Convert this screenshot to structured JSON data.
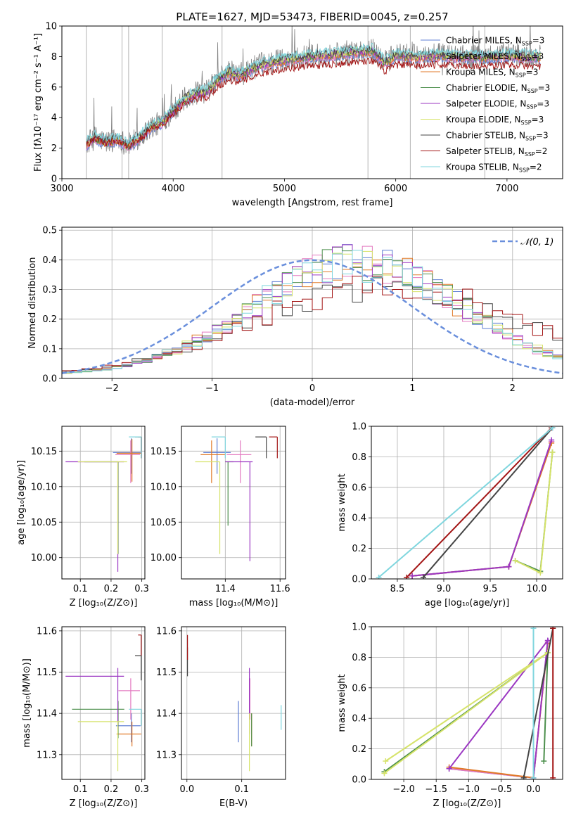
{
  "figure": {
    "title": "PLATE=1627, MJD=53473, FIBERID=0045, z=0.257"
  },
  "colors": {
    "Chabrier MILES": "#5f7fd4",
    "Salpeter MILES": "#e37ac0",
    "Kroupa MILES": "#e07a28",
    "Chabrier ELODIE": "#4c8f4c",
    "Salpeter ELODIE": "#9b37c2",
    "Kroupa ELODIE": "#d6e36a",
    "Chabrier STELIB": "#444444",
    "Salpeter STELIB": "#a31515",
    "Kroupa STELIB": "#7fd6de",
    "gauss": "#6a8fdc",
    "gray_data": "#808080"
  },
  "chart_data": [
    {
      "id": "spectrum",
      "type": "line",
      "xlabel": "wavelength [Angstrom, rest frame]",
      "ylabel": "Flux [fλ10⁻¹⁷ erg cm⁻² s⁻¹ A⁻¹]",
      "xlim": [
        3000,
        7500
      ],
      "ylim": [
        0,
        10
      ],
      "xticks": [
        3000,
        4000,
        5000,
        6000,
        7000
      ],
      "yticks": [
        0,
        2,
        4,
        6,
        8,
        10
      ],
      "legend_position": "upper-right",
      "legend": [
        {
          "model": "Chabrier MILES",
          "nssp": "3"
        },
        {
          "model": "Salpeter MILES",
          "nssp": "3"
        },
        {
          "model": "Kroupa MILES",
          "nssp": "3"
        },
        {
          "model": "Chabrier ELODIE",
          "nssp": "3"
        },
        {
          "model": "Salpeter ELODIE",
          "nssp": "3"
        },
        {
          "model": "Kroupa ELODIE",
          "nssp": "3"
        },
        {
          "model": "Chabrier STELIB",
          "nssp": "3"
        },
        {
          "model": "Salpeter STELIB",
          "nssp": "2"
        },
        {
          "model": "Kroupa STELIB",
          "nssp": "2"
        }
      ],
      "continuum": {
        "x": [
          3220,
          3300,
          3400,
          3500,
          3600,
          3700,
          3800,
          3900,
          4000,
          4100,
          4200,
          4300,
          4400,
          4500,
          4600,
          4700,
          4800,
          5000,
          5200,
          5400,
          5600,
          5800,
          5900,
          6000,
          6200,
          6400,
          6600,
          6800,
          7000,
          7200,
          7300
        ],
        "y": [
          2.3,
          2.7,
          2.4,
          2.6,
          2.2,
          2.7,
          3.4,
          3.7,
          4.5,
          5.2,
          5.6,
          5.7,
          6.5,
          7.0,
          6.8,
          7.2,
          7.5,
          7.8,
          8.0,
          8.1,
          8.3,
          8.4,
          7.6,
          8.1,
          8.0,
          8.1,
          8.0,
          8.0,
          8.1,
          8.0,
          8.0
        ]
      }
    },
    {
      "id": "residuals",
      "type": "histogram",
      "xlabel": "(data-model)/error",
      "ylabel": "Normed distribution",
      "xlim": [
        -2.5,
        2.5
      ],
      "ylim": [
        0,
        0.51
      ],
      "xticks": [
        -2,
        -1,
        0,
        1,
        2
      ],
      "yticks": [
        0.0,
        0.1,
        0.2,
        0.3,
        0.4,
        0.5
      ],
      "legend_position": "upper-right",
      "gauss_label": "𝒩(0, 1)",
      "bin_width": 0.1,
      "reference": {
        "name": "Normal",
        "mu": 0,
        "sigma": 1
      }
    },
    {
      "id": "Z-age",
      "type": "errorbar",
      "xlabel": "Z [log₁₀(Z/Z⊙)]",
      "ylabel": "age  [log₁₀(age/yr)]",
      "xlim": [
        0.04,
        0.31
      ],
      "ylim": [
        9.97,
        10.185
      ],
      "xticks": [
        0.1,
        0.2,
        0.3
      ],
      "yticks": [
        10.0,
        10.05,
        10.1,
        10.15
      ],
      "points": [
        {
          "model": "Chabrier MILES",
          "x": 0.266,
          "xerr": [
            0.06,
            0.03
          ],
          "y": 10.148,
          "yerr": [
            0.03,
            0.02
          ]
        },
        {
          "model": "Salpeter MILES",
          "x": 0.264,
          "xerr": [
            0.05,
            0.03
          ],
          "y": 10.145,
          "yerr": [
            0.04,
            0.02
          ]
        },
        {
          "model": "Kroupa MILES",
          "x": 0.268,
          "xerr": [
            0.05,
            0.03
          ],
          "y": 10.147,
          "yerr": [
            0.04,
            0.02
          ]
        },
        {
          "model": "Chabrier ELODIE",
          "x": 0.223,
          "xerr": [
            0.11,
            0.0
          ],
          "y": 10.135,
          "yerr": [
            0.13,
            0.0
          ]
        },
        {
          "model": "Salpeter ELODIE",
          "x": 0.222,
          "xerr": [
            0.17,
            0.02
          ],
          "y": 10.135,
          "yerr": [
            0.155,
            0.0
          ]
        },
        {
          "model": "Kroupa ELODIE",
          "x": 0.222,
          "xerr": [
            0.13,
            0.03
          ],
          "y": 10.135,
          "yerr": [
            0.13,
            0.0
          ]
        },
        {
          "model": "Chabrier STELIB",
          "x": 0.298,
          "xerr": [
            0.02,
            0.0
          ],
          "y": 10.17,
          "yerr": [
            0.02,
            0.0
          ]
        },
        {
          "model": "Salpeter STELIB",
          "x": 0.298,
          "xerr": [
            0.01,
            0.0
          ],
          "y": 10.17,
          "yerr": [
            0.03,
            0.0
          ]
        },
        {
          "model": "Kroupa STELIB",
          "x": 0.298,
          "xerr": [
            0.04,
            0.0
          ],
          "y": 10.17,
          "yerr": [
            0.03,
            0.0
          ]
        }
      ]
    },
    {
      "id": "mass-age",
      "type": "errorbar",
      "xlabel": "mass [log₁₀(M/M⊙)]",
      "ylabel": "",
      "xlim": [
        11.24,
        11.62
      ],
      "ylim": [
        9.97,
        10.185
      ],
      "xticks": [
        11.4,
        11.6
      ],
      "yticks": [
        10.0,
        10.05,
        10.1,
        10.15
      ],
      "points": [
        {
          "model": "Chabrier MILES",
          "x": 11.37,
          "xerr": [
            0.05,
            0.05
          ],
          "y": 10.148,
          "yerr": [
            0.03,
            0.02
          ]
        },
        {
          "model": "Salpeter MILES",
          "x": 11.455,
          "xerr": [
            0.05,
            0.04
          ],
          "y": 10.145,
          "yerr": [
            0.04,
            0.02
          ]
        },
        {
          "model": "Kroupa MILES",
          "x": 11.35,
          "xerr": [
            0.04,
            0.05
          ],
          "y": 10.145,
          "yerr": [
            0.04,
            0.02
          ]
        },
        {
          "model": "Chabrier ELODIE",
          "x": 11.41,
          "xerr": [
            0.01,
            0.02
          ],
          "y": 10.135,
          "yerr": [
            0.09,
            0.0
          ]
        },
        {
          "model": "Salpeter ELODIE",
          "x": 11.49,
          "xerr": [
            0.09,
            0.01
          ],
          "y": 10.135,
          "yerr": [
            0.14,
            0.0
          ]
        },
        {
          "model": "Kroupa ELODIE",
          "x": 11.38,
          "xerr": [
            0.09,
            0.0
          ],
          "y": 10.135,
          "yerr": [
            0.13,
            0.0
          ]
        },
        {
          "model": "Chabrier STELIB",
          "x": 11.55,
          "xerr": [
            0.04,
            0.0
          ],
          "y": 10.17,
          "yerr": [
            0.03,
            0.0
          ]
        },
        {
          "model": "Salpeter STELIB",
          "x": 11.59,
          "xerr": [
            0.03,
            0.0
          ],
          "y": 10.17,
          "yerr": [
            0.03,
            0.0
          ]
        },
        {
          "model": "Kroupa STELIB",
          "x": 11.4,
          "xerr": [
            0.05,
            0.0
          ],
          "y": 10.17,
          "yerr": [
            0.03,
            0.0
          ]
        }
      ]
    },
    {
      "id": "age-weight",
      "type": "line",
      "xlabel": "age  [log₁₀(age/yr)]",
      "ylabel": "mass weight",
      "xlim": [
        8.22,
        10.28
      ],
      "ylim": [
        0,
        1.0
      ],
      "xticks": [
        8.5,
        9.0,
        9.5,
        10.0
      ],
      "yticks": [
        0.0,
        0.2,
        0.4,
        0.6,
        0.8,
        1.0
      ],
      "series": [
        {
          "name": "Chabrier MILES",
          "x": [
            8.66,
            9.7,
            10.16
          ],
          "y": [
            0.02,
            0.08,
            0.9
          ]
        },
        {
          "name": "Salpeter MILES",
          "x": [
            8.66,
            9.7,
            10.16
          ],
          "y": [
            0.02,
            0.08,
            0.9
          ]
        },
        {
          "name": "Kroupa MILES",
          "x": [
            8.66,
            9.7,
            10.16
          ],
          "y": [
            0.02,
            0.08,
            0.89
          ]
        },
        {
          "name": "Chabrier ELODIE",
          "x": [
            9.77,
            10.04,
            10.17
          ],
          "y": [
            0.12,
            0.05,
            0.83
          ]
        },
        {
          "name": "Salpeter ELODIE",
          "x": [
            8.66,
            9.7,
            10.16
          ],
          "y": [
            0.02,
            0.08,
            0.91
          ]
        },
        {
          "name": "Kroupa ELODIE",
          "x": [
            9.77,
            10.04,
            10.17
          ],
          "y": [
            0.12,
            0.04,
            0.83
          ]
        },
        {
          "name": "Chabrier STELIB",
          "x": [
            8.78,
            10.17
          ],
          "y": [
            0.01,
            0.99
          ]
        },
        {
          "name": "Salpeter STELIB",
          "x": [
            8.6,
            10.16
          ],
          "y": [
            0.01,
            0.99
          ]
        },
        {
          "name": "Kroupa STELIB",
          "x": [
            8.3,
            10.17
          ],
          "y": [
            0.01,
            0.99
          ]
        }
      ]
    },
    {
      "id": "Z-mass",
      "type": "errorbar",
      "xlabel": "Z [log₁₀(Z/Z⊙)]",
      "ylabel": "mass [log₁₀(M/M⊙)]",
      "xlim": [
        0.04,
        0.31
      ],
      "ylim": [
        11.24,
        11.61
      ],
      "xticks": [
        0.1,
        0.2,
        0.3
      ],
      "yticks": [
        11.3,
        11.4,
        11.5,
        11.6
      ],
      "points": [
        {
          "model": "Chabrier MILES",
          "x": 0.266,
          "xerr": [
            0.05,
            0.03
          ],
          "y": 11.37,
          "yerr": [
            0.04,
            0.03
          ]
        },
        {
          "model": "Salpeter MILES",
          "x": 0.264,
          "xerr": [
            0.04,
            0.03
          ],
          "y": 11.455,
          "yerr": [
            0.07,
            0.03
          ]
        },
        {
          "model": "Kroupa MILES",
          "x": 0.268,
          "xerr": [
            0.05,
            0.03
          ],
          "y": 11.35,
          "yerr": [
            0.03,
            0.03
          ]
        },
        {
          "model": "Chabrier ELODIE",
          "x": 0.223,
          "xerr": [
            0.15,
            0.02
          ],
          "y": 11.41,
          "yerr": [
            0.07,
            0.02
          ]
        },
        {
          "model": "Salpeter ELODIE",
          "x": 0.222,
          "xerr": [
            0.17,
            0.02
          ],
          "y": 11.49,
          "yerr": [
            0.13,
            0.02
          ]
        },
        {
          "model": "Kroupa ELODIE",
          "x": 0.222,
          "xerr": [
            0.13,
            0.02
          ],
          "y": 11.38,
          "yerr": [
            0.12,
            0.0
          ]
        },
        {
          "model": "Chabrier STELIB",
          "x": 0.298,
          "xerr": [
            0.02,
            0.0
          ],
          "y": 11.54,
          "yerr": [
            0.06,
            0.0
          ]
        },
        {
          "model": "Salpeter STELIB",
          "x": 0.298,
          "xerr": [
            0.01,
            0.0
          ],
          "y": 11.59,
          "yerr": [
            0.05,
            0.0
          ]
        },
        {
          "model": "Kroupa STELIB",
          "x": 0.298,
          "xerr": [
            0.04,
            0.0
          ],
          "y": 11.41,
          "yerr": [
            0.04,
            0.0
          ]
        }
      ]
    },
    {
      "id": "ebv-mass",
      "type": "errorbar",
      "xlabel": "E(B-V)",
      "ylabel": "",
      "xlim": [
        -0.01,
        0.18
      ],
      "ylim": [
        11.24,
        11.61
      ],
      "xticks": [
        0.0,
        0.1
      ],
      "yticks": [
        11.3,
        11.4,
        11.5,
        11.6
      ],
      "points": [
        {
          "model": "Chabrier MILES",
          "x": 0.094,
          "xerr": [
            0,
            0
          ],
          "y": 11.38,
          "yerr": [
            0.05,
            0.05
          ]
        },
        {
          "model": "Salpeter MILES",
          "x": 0.115,
          "xerr": [
            0,
            0
          ],
          "y": 11.455,
          "yerr": [
            0.07,
            0.03
          ]
        },
        {
          "model": "Kroupa MILES",
          "x": 0.118,
          "xerr": [
            0,
            0
          ],
          "y": 11.35,
          "yerr": [
            0.03,
            0.05
          ]
        },
        {
          "model": "Chabrier ELODIE",
          "x": 0.118,
          "xerr": [
            0,
            0
          ],
          "y": 11.38,
          "yerr": [
            0.06,
            0.02
          ]
        },
        {
          "model": "Salpeter ELODIE",
          "x": 0.114,
          "xerr": [
            0,
            0
          ],
          "y": 11.45,
          "yerr": [
            0.1,
            0.06
          ]
        },
        {
          "model": "Kroupa ELODIE",
          "x": 0.114,
          "xerr": [
            0,
            0
          ],
          "y": 11.35,
          "yerr": [
            0.09,
            0.05
          ]
        },
        {
          "model": "Chabrier STELIB",
          "x": 0.001,
          "xerr": [
            0,
            0
          ],
          "y": 11.52,
          "yerr": [
            0.03,
            0.04
          ]
        },
        {
          "model": "Salpeter STELIB",
          "x": 0.001,
          "xerr": [
            0,
            0
          ],
          "y": 11.56,
          "yerr": [
            0.03,
            0.03
          ]
        },
        {
          "model": "Kroupa STELIB",
          "x": 0.172,
          "xerr": [
            0,
            0
          ],
          "y": 11.39,
          "yerr": [
            0.03,
            0.03
          ]
        }
      ]
    },
    {
      "id": "Z-weight",
      "type": "line",
      "xlabel": "Z [log₁₀(Z/Z⊙)]",
      "ylabel": "mass weight",
      "xlim": [
        -2.5,
        0.45
      ],
      "ylim": [
        0,
        1.0
      ],
      "xticks": [
        -2.0,
        -1.5,
        -1.0,
        -0.5,
        0.0
      ],
      "yticks": [
        0.0,
        0.2,
        0.4,
        0.6,
        0.8,
        1.0
      ],
      "series": [
        {
          "name": "Chabrier MILES",
          "x": [
            -1.3,
            0.0,
            0.22
          ],
          "y": [
            0.07,
            0.01,
            0.9
          ]
        },
        {
          "name": "Salpeter MILES",
          "x": [
            -1.3,
            0.0,
            0.22
          ],
          "y": [
            0.07,
            0.01,
            0.9
          ]
        },
        {
          "name": "Kroupa MILES",
          "x": [
            -1.3,
            0.0,
            0.22
          ],
          "y": [
            0.08,
            0.01,
            0.89
          ]
        },
        {
          "name": "Chabrier ELODIE",
          "x": [
            -2.3,
            0.22,
            0.16
          ],
          "y": [
            0.05,
            0.83,
            0.12
          ]
        },
        {
          "name": "Salpeter ELODIE",
          "x": [
            -1.3,
            0.22,
            0.0
          ],
          "y": [
            0.07,
            0.91,
            0.01
          ]
        },
        {
          "name": "Kroupa ELODIE",
          "x": [
            -2.3,
            0.22,
            -2.28
          ],
          "y": [
            0.04,
            0.83,
            0.12
          ]
        },
        {
          "name": "Chabrier STELIB",
          "x": [
            -0.15,
            0.3
          ],
          "y": [
            0.01,
            0.99
          ]
        },
        {
          "name": "Salpeter STELIB",
          "x": [
            0.3,
            0.3
          ],
          "y": [
            0.01,
            0.99
          ]
        },
        {
          "name": "Kroupa STELIB",
          "x": [
            0.0,
            0.0
          ],
          "y": [
            0.01,
            0.99
          ]
        }
      ]
    }
  ]
}
